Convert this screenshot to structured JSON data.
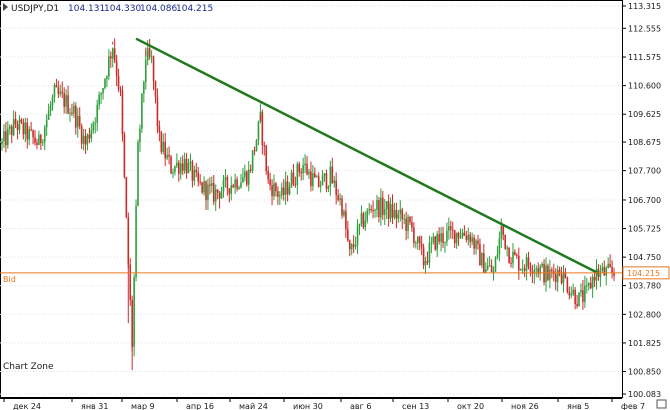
{
  "header": {
    "symbol": "USDJPY,D1",
    "open": "104.131",
    "high": "104.330",
    "low": "104.086",
    "close": "104.215"
  },
  "watermark": "Chart Zone",
  "bid": {
    "label": "Bid",
    "value": "104.215"
  },
  "colors": {
    "up": "#2e9e3a",
    "down": "#cc2a2a",
    "trendline": "#1f7a1f",
    "bid": "#e8781e",
    "grid": "#e0e0e0",
    "axis": "#000000"
  },
  "chart_data": {
    "type": "candlestick",
    "y_axis": {
      "min": 100.083,
      "max": 113.315,
      "ticks": [
        "113.315",
        "112.555",
        "111.575",
        "110.600",
        "109.625",
        "108.675",
        "107.700",
        "106.700",
        "105.725",
        "104.750",
        "103.780",
        "102.800",
        "101.825",
        "100.850",
        "100.083"
      ]
    },
    "x_axis": {
      "labels": [
        "дек 24",
        "янв 31",
        "мар 9",
        "апр 16",
        "май 24",
        "июн 30",
        "авг 6",
        "сен 13",
        "окт 20",
        "ноя 26",
        "янв 5",
        "фев 7"
      ],
      "start": 1,
      "end": 316
    },
    "trendline": {
      "start": [
        70,
        112.2
      ],
      "end": [
        308,
        104.2
      ]
    },
    "key_points": [
      [
        1,
        108.6
      ],
      [
        8,
        109.3
      ],
      [
        20,
        108.6
      ],
      [
        28,
        110.3
      ],
      [
        33,
        110.1
      ],
      [
        38,
        109.7
      ],
      [
        44,
        108.6
      ],
      [
        50,
        109.8
      ],
      [
        58,
        112.0
      ],
      [
        62,
        110.2
      ],
      [
        66,
        104.5
      ],
      [
        68,
        101.8
      ],
      [
        71,
        108.4
      ],
      [
        75,
        111.6
      ],
      [
        78,
        111.4
      ],
      [
        82,
        108.7
      ],
      [
        88,
        107.8
      ],
      [
        95,
        108.0
      ],
      [
        102,
        107.2
      ],
      [
        110,
        106.9
      ],
      [
        120,
        107.3
      ],
      [
        128,
        107.6
      ],
      [
        134,
        109.4
      ],
      [
        138,
        107.3
      ],
      [
        145,
        106.8
      ],
      [
        150,
        107.4
      ],
      [
        156,
        107.9
      ],
      [
        163,
        107.2
      ],
      [
        170,
        107.5
      ],
      [
        176,
        106.5
      ],
      [
        180,
        104.8
      ],
      [
        186,
        105.9
      ],
      [
        192,
        106.5
      ],
      [
        198,
        106.4
      ],
      [
        206,
        106.1
      ],
      [
        212,
        105.7
      ],
      [
        218,
        104.6
      ],
      [
        224,
        105.3
      ],
      [
        230,
        105.5
      ],
      [
        236,
        105.6
      ],
      [
        242,
        105.5
      ],
      [
        248,
        104.6
      ],
      [
        254,
        104.2
      ],
      [
        258,
        105.7
      ],
      [
        262,
        104.9
      ],
      [
        268,
        104.5
      ],
      [
        275,
        104.5
      ],
      [
        282,
        104.1
      ],
      [
        288,
        104.3
      ],
      [
        294,
        103.6
      ],
      [
        298,
        103.3
      ],
      [
        302,
        103.5
      ],
      [
        306,
        104.2
      ]
    ]
  }
}
